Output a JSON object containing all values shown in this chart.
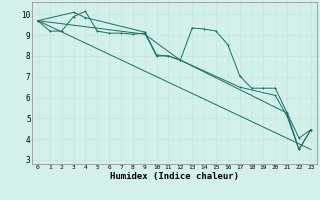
{
  "xlabel": "Humidex (Indice chaleur)",
  "bg_color": "#d4f0eb",
  "line_color": "#1a6e64",
  "grid_color": "#c8e8e0",
  "xlim": [
    -0.5,
    23.5
  ],
  "ylim": [
    2.8,
    10.6
  ],
  "yticks": [
    3,
    4,
    5,
    6,
    7,
    8,
    9,
    10
  ],
  "xticks": [
    0,
    1,
    2,
    3,
    4,
    5,
    6,
    7,
    8,
    9,
    10,
    11,
    12,
    13,
    14,
    15,
    16,
    17,
    18,
    19,
    20,
    21,
    22,
    23
  ],
  "series1": [
    [
      0,
      9.7
    ],
    [
      1,
      9.2
    ],
    [
      2,
      9.2
    ],
    [
      3,
      9.9
    ],
    [
      4,
      10.15
    ],
    [
      5,
      9.2
    ],
    [
      6,
      9.1
    ],
    [
      7,
      9.1
    ],
    [
      8,
      9.05
    ],
    [
      9,
      9.1
    ],
    [
      10,
      8.0
    ],
    [
      11,
      8.0
    ],
    [
      12,
      7.8
    ],
    [
      13,
      9.35
    ],
    [
      14,
      9.3
    ],
    [
      15,
      9.2
    ],
    [
      16,
      8.55
    ],
    [
      17,
      7.05
    ],
    [
      18,
      6.45
    ],
    [
      19,
      6.45
    ],
    [
      20,
      6.45
    ],
    [
      21,
      5.25
    ],
    [
      22,
      4.05
    ],
    [
      23,
      4.45
    ]
  ],
  "series2": [
    [
      0,
      9.7
    ],
    [
      3,
      10.1
    ],
    [
      4,
      9.85
    ],
    [
      9,
      9.15
    ],
    [
      10,
      8.05
    ],
    [
      11,
      8.0
    ],
    [
      12,
      7.8
    ],
    [
      21,
      5.25
    ],
    [
      22,
      3.5
    ],
    [
      23,
      4.45
    ]
  ],
  "series3": [
    [
      0,
      9.7
    ],
    [
      9,
      9.05
    ],
    [
      12,
      7.8
    ],
    [
      17,
      6.5
    ],
    [
      20,
      6.1
    ],
    [
      21,
      5.1
    ],
    [
      22,
      3.5
    ],
    [
      23,
      4.45
    ]
  ],
  "series4": [
    [
      0,
      9.7
    ],
    [
      23,
      3.5
    ]
  ]
}
